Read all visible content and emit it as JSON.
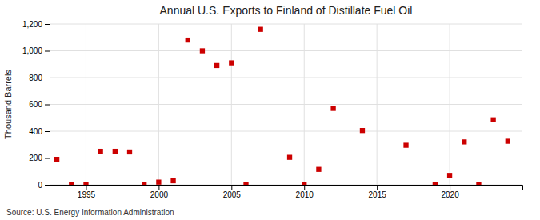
{
  "chart_data": {
    "type": "scatter",
    "title": "Annual U.S. Exports to Finland of Distillate Fuel Oil",
    "ylabel": "Thousand Barrels",
    "annotations": [
      "Source: U.S. Energy Information Administration"
    ],
    "x": [
      1993,
      1994,
      1995,
      1996,
      1997,
      1998,
      1999,
      2000,
      2001,
      2002,
      2003,
      2004,
      2005,
      2006,
      2007,
      2009,
      2010,
      2011,
      2012,
      2014,
      2017,
      2019,
      2020,
      2021,
      2022,
      2023,
      2024
    ],
    "values": [
      190,
      5,
      5,
      250,
      250,
      245,
      5,
      20,
      30,
      1080,
      1000,
      890,
      910,
      5,
      1160,
      205,
      5,
      115,
      570,
      405,
      295,
      5,
      70,
      320,
      5,
      485,
      325
    ],
    "color": "#cc0000",
    "marker": "square",
    "xlim": [
      1992.5,
      2025
    ],
    "xticks": [
      1995,
      2000,
      2005,
      2010,
      2015,
      2020
    ],
    "ylim": [
      0,
      1200
    ],
    "yticks": [
      0,
      200,
      400,
      600,
      800,
      {
        "value": 1000,
        "label": "1,000"
      },
      {
        "value": 1200,
        "label": "1,200"
      }
    ],
    "grid": true
  }
}
